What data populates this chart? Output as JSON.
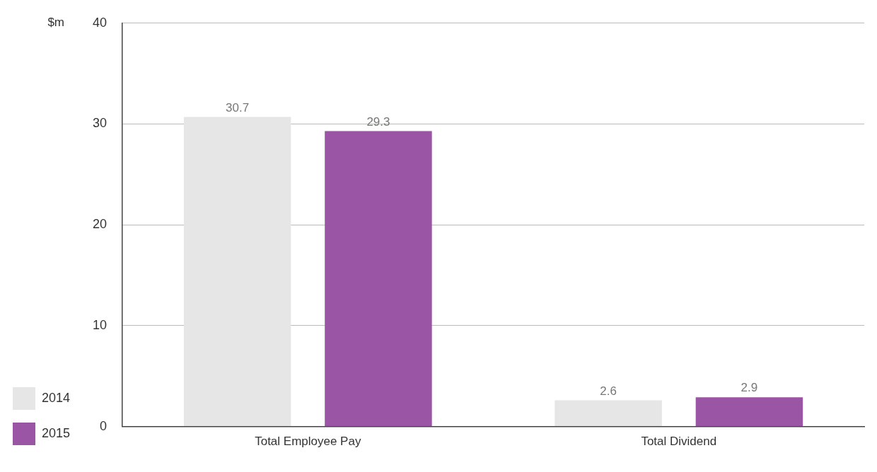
{
  "chart_data": {
    "type": "bar",
    "ylabel": "$m",
    "categories": [
      "Total Employee Pay",
      "Total Dividend"
    ],
    "series": [
      {
        "name": "2014",
        "color": "#e6e6e6",
        "values": [
          30.7,
          2.6
        ]
      },
      {
        "name": "2015",
        "color": "#9b55a5",
        "values": [
          29.3,
          2.9
        ]
      }
    ],
    "ylim": [
      0,
      40
    ],
    "yticks": [
      0,
      10,
      20,
      30,
      40
    ],
    "grid": "y",
    "legend": "bottom left",
    "data_labels": true
  }
}
